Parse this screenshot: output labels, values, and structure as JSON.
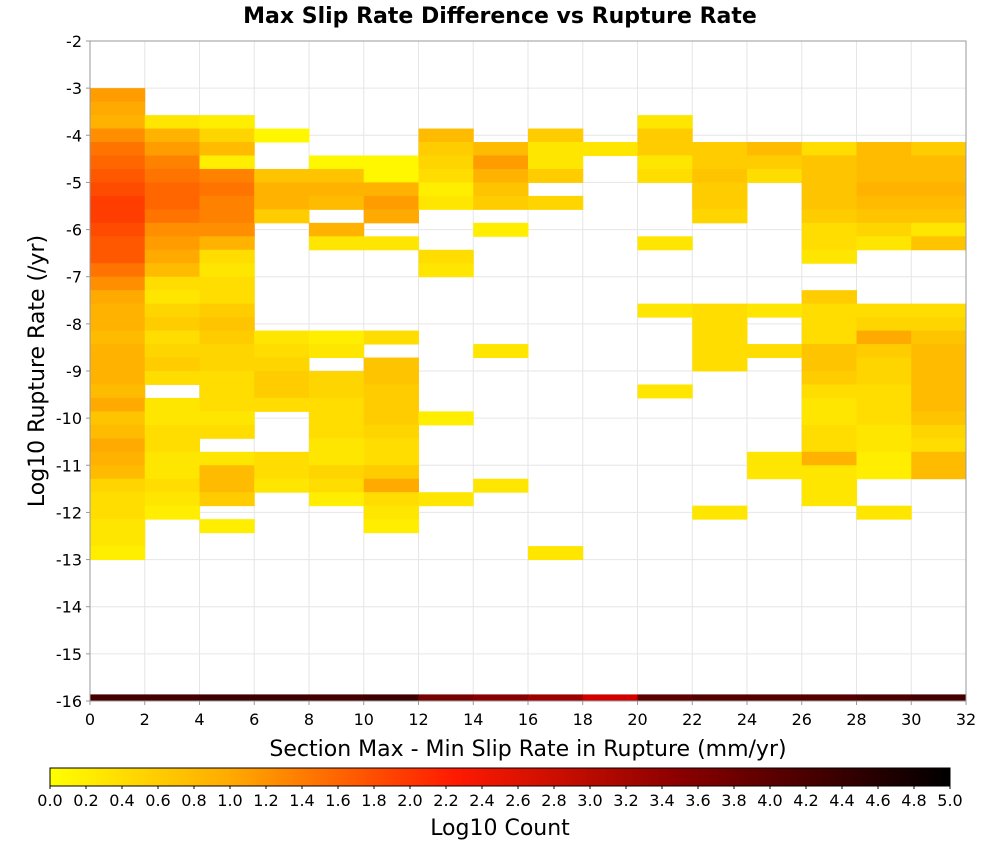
{
  "chart_data": {
    "type": "heatmap",
    "title": "Max Slip Rate Difference vs Rupture Rate",
    "xlabel": "Section Max - Min Slip Rate in Rupture (mm/yr)",
    "ylabel": "Log10 Rupture Rate (/yr)",
    "xlim": [
      0,
      32
    ],
    "ylim": [
      -16,
      -2
    ],
    "x_ticks": [
      "0",
      "2",
      "4",
      "6",
      "8",
      "10",
      "12",
      "14",
      "16",
      "18",
      "20",
      "22",
      "24",
      "26",
      "28",
      "30",
      "32"
    ],
    "y_ticks": [
      "-2",
      "-3",
      "-4",
      "-5",
      "-6",
      "-7",
      "-8",
      "-9",
      "-10",
      "-11",
      "-12",
      "-13",
      "-14",
      "-15",
      "-16"
    ],
    "x_bin_width": 2,
    "y_bin_height": 0.2857,
    "grid": true,
    "colorbar": {
      "label": "Log10 Count",
      "min": 0,
      "max": 5,
      "ticks": [
        "0.0",
        "0.2",
        "0.4",
        "0.6",
        "0.8",
        "1.0",
        "1.2",
        "1.4",
        "1.6",
        "1.8",
        "2.0",
        "2.2",
        "2.4",
        "2.6",
        "2.8",
        "3.0",
        "3.2",
        "3.4",
        "3.6",
        "3.8",
        "4.0",
        "4.2",
        "4.4",
        "4.6",
        "4.8",
        "5.0"
      ],
      "stops": [
        "#ffff00",
        "#ffaa00",
        "#ff0000",
        "#800000",
        "#000000"
      ]
    },
    "cells": [
      [
        0,
        1.1,
        1.0,
        0.9,
        1.2,
        1.4,
        1.5,
        1.6,
        1.7,
        1.8,
        1.8,
        1.7,
        1.6,
        1.6,
        1.4,
        1.2,
        1.0,
        0.9,
        0.9,
        0.8,
        0.9,
        0.9,
        0.9,
        0.8,
        1.0,
        0.7,
        0.8,
        1.0,
        0.9,
        0.8,
        0.5,
        0.4,
        0.4,
        0.3,
        0.3,
        0.2
      ],
      [
        2,
        null,
        null,
        0.3,
        0.9,
        1.1,
        1.3,
        1.4,
        1.5,
        1.5,
        1.4,
        1.2,
        1.1,
        1.0,
        0.8,
        0.4,
        0.3,
        0.5,
        0.6,
        0.4,
        0.5,
        0.6,
        0.4,
        null,
        0.3,
        0.3,
        0.4,
        0.4,
        0.3,
        0.3,
        0.4,
        0.3,
        0.2,
        null,
        null,
        null
      ],
      [
        4,
        null,
        null,
        0.2,
        0.5,
        0.8,
        0.2,
        1.3,
        1.4,
        1.3,
        1.3,
        1.2,
        0.9,
        0.4,
        0.3,
        0.4,
        0.4,
        0.6,
        0.7,
        0.6,
        0.5,
        0.5,
        0.4,
        0.4,
        0.4,
        0.3,
        0.4,
        null,
        0.3,
        0.8,
        0.8,
        0.6,
        null,
        0.2,
        null,
        null
      ],
      [
        6,
        null,
        null,
        null,
        0.1,
        null,
        null,
        0.7,
        0.9,
        0.9,
        0.6,
        null,
        null,
        null,
        null,
        null,
        null,
        null,
        null,
        0.3,
        0.4,
        0.5,
        0.6,
        0.6,
        0.4,
        null,
        null,
        null,
        0.4,
        0.4,
        0.3,
        null,
        null,
        null,
        null,
        null
      ],
      [
        8,
        null,
        null,
        null,
        null,
        null,
        0.1,
        0.7,
        0.9,
        0.8,
        null,
        0.9,
        0.3,
        null,
        null,
        null,
        null,
        null,
        null,
        0.2,
        0.3,
        null,
        0.5,
        0.5,
        0.4,
        0.4,
        0.4,
        0.3,
        0.3,
        0.5,
        0.4,
        0.2,
        null,
        null,
        null,
        null
      ],
      [
        10,
        null,
        null,
        null,
        null,
        null,
        0.1,
        0.1,
        0.9,
        1.1,
        1.0,
        null,
        0.3,
        null,
        null,
        null,
        null,
        null,
        null,
        0.4,
        null,
        0.7,
        0.7,
        0.6,
        0.6,
        0.6,
        0.5,
        0.4,
        0.4,
        0.6,
        1.0,
        0.4,
        0.3,
        0.2,
        null,
        null
      ],
      [
        12,
        null,
        null,
        null,
        0.8,
        0.6,
        0.5,
        0.4,
        0.2,
        0.3,
        null,
        null,
        null,
        0.4,
        0.3,
        null,
        null,
        null,
        null,
        null,
        null,
        null,
        null,
        null,
        null,
        0.2,
        null,
        null,
        null,
        null,
        null,
        0.3,
        null,
        null,
        null,
        null
      ],
      [
        14,
        null,
        null,
        null,
        null,
        0.8,
        1.1,
        0.9,
        0.7,
        0.6,
        null,
        0.2,
        null,
        null,
        null,
        null,
        null,
        null,
        null,
        null,
        0.3,
        null,
        null,
        null,
        null,
        null,
        null,
        null,
        null,
        null,
        0.3,
        null,
        null,
        null,
        null,
        null
      ],
      [
        16,
        null,
        null,
        null,
        0.6,
        0.3,
        0.3,
        0.6,
        null,
        0.5,
        null,
        null,
        null,
        null,
        null,
        null,
        null,
        null,
        null,
        null,
        null,
        null,
        null,
        null,
        null,
        null,
        null,
        null,
        null,
        null,
        null,
        null,
        null,
        null,
        null,
        0.3
      ],
      [
        18,
        null,
        null,
        null,
        null,
        0.3,
        null,
        null,
        null,
        null,
        null,
        null,
        null,
        null,
        null,
        null,
        null,
        null,
        null,
        null,
        null,
        null,
        null,
        null,
        null,
        null,
        null,
        null,
        null,
        null,
        null,
        null,
        null,
        null,
        null,
        null
      ],
      [
        20,
        null,
        null,
        0.3,
        0.6,
        0.6,
        0.3,
        0.4,
        null,
        null,
        null,
        null,
        0.3,
        null,
        null,
        null,
        null,
        0.3,
        null,
        null,
        null,
        null,
        null,
        0.3,
        null,
        null,
        null,
        null,
        null,
        null,
        null,
        null,
        null,
        null,
        null,
        null
      ],
      [
        22,
        null,
        null,
        null,
        null,
        0.6,
        0.6,
        0.7,
        0.6,
        0.6,
        0.5,
        null,
        null,
        null,
        null,
        null,
        null,
        0.4,
        0.4,
        0.4,
        0.4,
        0.4,
        null,
        null,
        null,
        null,
        null,
        null,
        null,
        null,
        null,
        null,
        0.3,
        null,
        null,
        null
      ],
      [
        24,
        null,
        null,
        null,
        null,
        0.8,
        0.6,
        0.4,
        null,
        null,
        null,
        null,
        null,
        null,
        null,
        null,
        null,
        0.3,
        null,
        null,
        0.4,
        null,
        null,
        null,
        null,
        null,
        null,
        null,
        0.3,
        0.3,
        null,
        null,
        null,
        null,
        null,
        null
      ],
      [
        26,
        null,
        null,
        null,
        null,
        0.4,
        0.7,
        0.7,
        0.7,
        0.7,
        0.6,
        0.4,
        0.4,
        0.3,
        null,
        null,
        0.6,
        0.4,
        0.4,
        0.4,
        0.7,
        0.7,
        0.6,
        0.4,
        0.3,
        0.3,
        0.4,
        0.4,
        0.9,
        0.3,
        0.3,
        0.3,
        null,
        null,
        null,
        null
      ],
      [
        28,
        null,
        null,
        null,
        null,
        0.8,
        0.8,
        0.8,
        0.9,
        0.8,
        0.7,
        0.5,
        0.3,
        null,
        null,
        null,
        null,
        0.4,
        0.5,
        1.0,
        0.6,
        0.5,
        0.5,
        0.4,
        0.4,
        0.4,
        0.3,
        0.3,
        0.2,
        0.2,
        null,
        null,
        0.3,
        null,
        null,
        null
      ],
      [
        30,
        null,
        null,
        null,
        null,
        0.6,
        0.8,
        0.8,
        0.9,
        0.8,
        0.7,
        0.3,
        0.7,
        null,
        null,
        null,
        null,
        0.4,
        0.5,
        0.7,
        0.8,
        0.8,
        0.8,
        0.8,
        0.8,
        0.7,
        0.5,
        0.4,
        0.8,
        0.8,
        null,
        null,
        null,
        null,
        null,
        null
      ]
    ],
    "bottom_row": [
      4.2,
      4.2,
      4.3,
      4.3,
      4.2,
      4.3,
      3.6,
      3.4,
      3.2,
      2.7,
      3.9,
      4.0,
      4.0,
      4.0,
      4.1,
      4.2
    ]
  }
}
